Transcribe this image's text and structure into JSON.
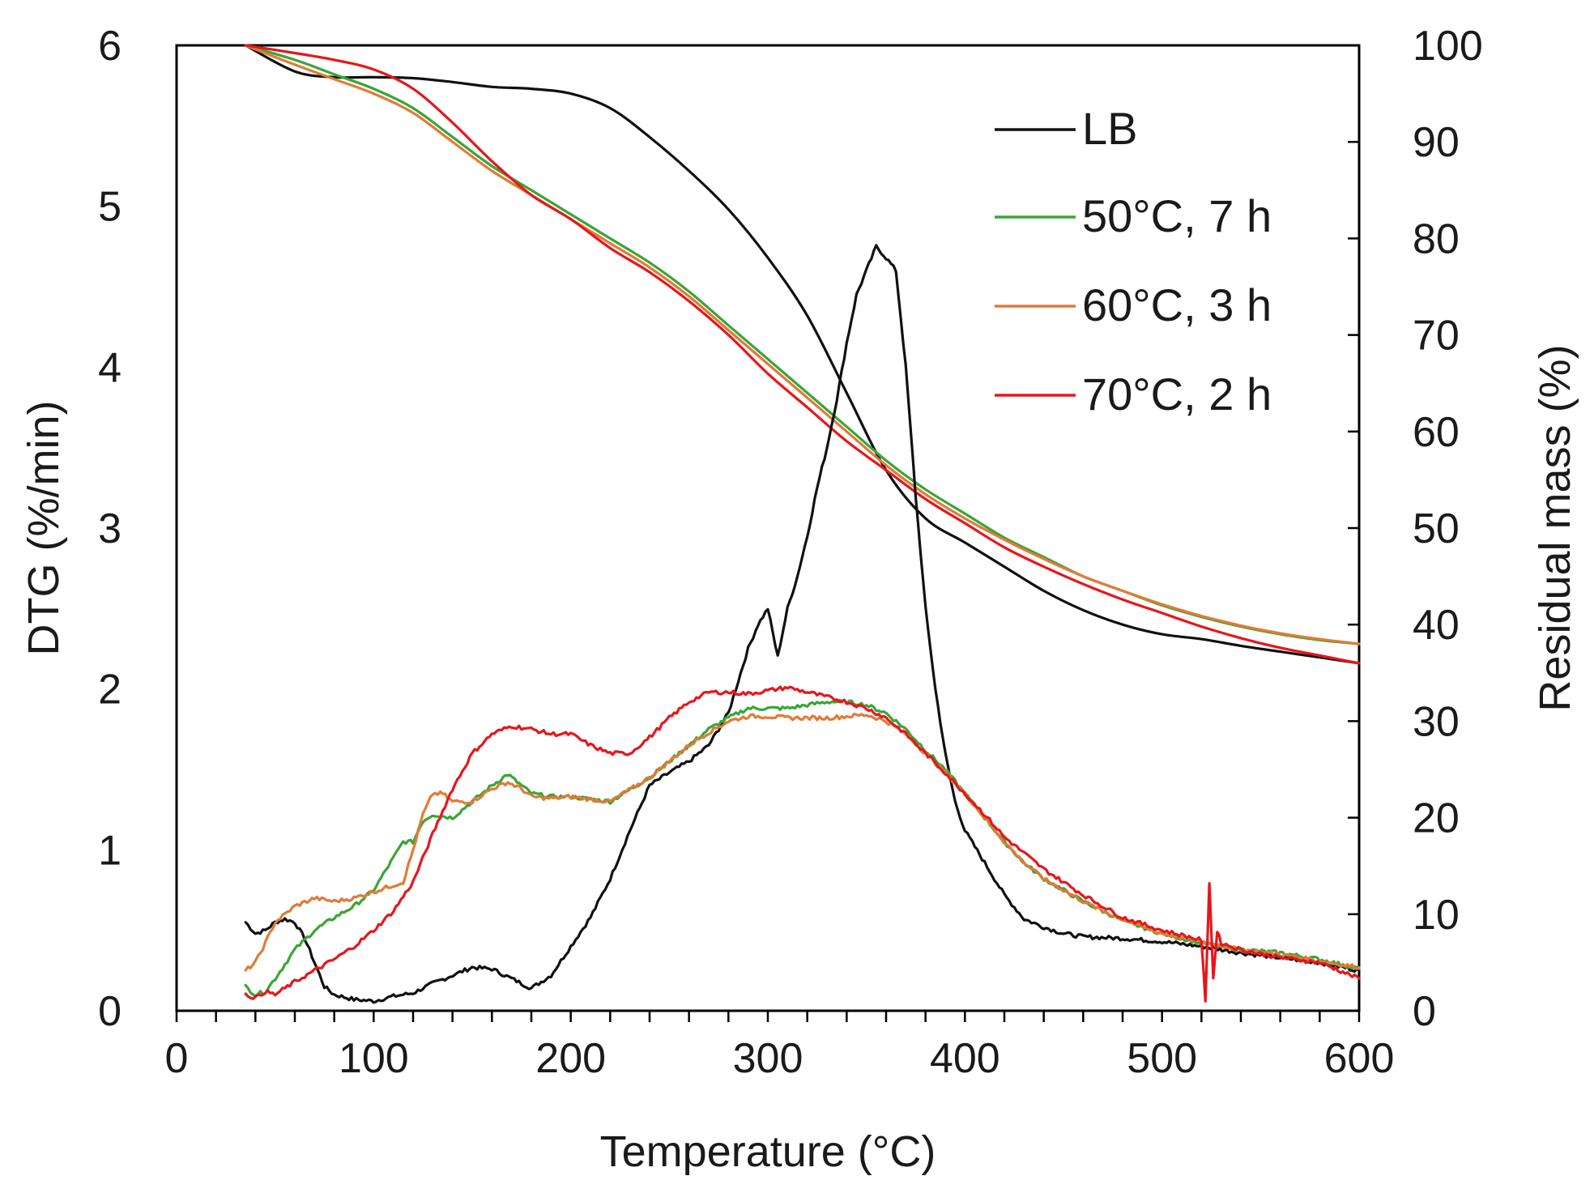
{
  "chart_data": {
    "type": "line",
    "title": "",
    "xlabel": "Temperature (°C)",
    "ylabel_left": "DTG (%/min)",
    "ylabel_right": "Residual mass (%)",
    "xlim": [
      0,
      600
    ],
    "ylim_left": [
      0,
      6
    ],
    "ylim_right": [
      0,
      100
    ],
    "x_ticks": [
      0,
      100,
      200,
      300,
      400,
      500,
      600
    ],
    "x_minor_step": 20,
    "y_left_ticks": [
      0,
      1,
      2,
      3,
      4,
      5,
      6
    ],
    "y_right_ticks": [
      0,
      10,
      20,
      30,
      40,
      50,
      60,
      70,
      80,
      90,
      100
    ],
    "grid": false,
    "legend_position": "top-right",
    "legend": [
      {
        "name": "LB",
        "color": "#111111"
      },
      {
        "name": "50°C, 7 h",
        "color": "#3aa537"
      },
      {
        "name": "60°C, 3 h",
        "color": "#e07b39"
      },
      {
        "name": "70°C, 2 h",
        "color": "#e8161b"
      }
    ],
    "series": [
      {
        "name": "LB",
        "kind": "residual_mass",
        "axis": "right",
        "color": "#111111",
        "x": [
          35,
          60,
          80,
          100,
          120,
          140,
          160,
          180,
          200,
          220,
          240,
          260,
          280,
          300,
          320,
          340,
          360,
          380,
          400,
          420,
          440,
          460,
          480,
          500,
          520,
          540,
          560,
          580,
          600
        ],
        "y": [
          100,
          97.3,
          96.7,
          96.7,
          96.6,
          96.2,
          95.7,
          95.5,
          95,
          93.5,
          90.5,
          87,
          83,
          78,
          72,
          64,
          56,
          51,
          48.5,
          46,
          43.5,
          41.5,
          40,
          39,
          38.5,
          37.8,
          37.2,
          36.6,
          36
        ]
      },
      {
        "name": "50°C, 7 h",
        "kind": "residual_mass",
        "axis": "right",
        "color": "#3aa537",
        "x": [
          35,
          60,
          80,
          100,
          120,
          140,
          160,
          180,
          200,
          220,
          240,
          260,
          280,
          300,
          320,
          340,
          360,
          380,
          400,
          420,
          440,
          460,
          480,
          500,
          520,
          540,
          560,
          580,
          600
        ],
        "y": [
          100,
          98.5,
          97,
          95.5,
          93.5,
          90.5,
          87.5,
          85,
          82.5,
          80,
          77.5,
          74.5,
          71,
          67.5,
          64,
          60.5,
          57,
          54,
          51.5,
          49,
          47,
          45,
          43.5,
          42,
          40.8,
          39.8,
          39,
          38.4,
          38
        ]
      },
      {
        "name": "60°C, 3 h",
        "kind": "residual_mass",
        "axis": "right",
        "color": "#e07b39",
        "x": [
          35,
          60,
          80,
          100,
          120,
          140,
          160,
          180,
          200,
          220,
          240,
          260,
          280,
          300,
          320,
          340,
          360,
          380,
          400,
          420,
          440,
          460,
          480,
          500,
          520,
          540,
          560,
          580,
          600
        ],
        "y": [
          100,
          98,
          96.5,
          95,
          93,
          90,
          87,
          84.5,
          82,
          79.5,
          77,
          74,
          70.5,
          67,
          63.5,
          60,
          56.5,
          53.5,
          51,
          48.8,
          46.8,
          45,
          43.5,
          42.1,
          40.9,
          39.9,
          39.1,
          38.5,
          38
        ]
      },
      {
        "name": "70°C, 2 h",
        "kind": "residual_mass",
        "axis": "right",
        "color": "#e8161b",
        "x": [
          35,
          60,
          80,
          100,
          120,
          140,
          160,
          180,
          200,
          220,
          240,
          260,
          280,
          300,
          320,
          340,
          360,
          380,
          400,
          420,
          440,
          460,
          480,
          500,
          520,
          540,
          560,
          580,
          600
        ],
        "y": [
          100,
          99.2,
          98.5,
          97.5,
          95.5,
          92,
          88,
          84.5,
          82,
          79,
          76.5,
          73.5,
          70,
          66,
          62.5,
          59,
          56,
          53,
          50.5,
          48,
          46,
          44.2,
          42.6,
          41.2,
          39.8,
          38.6,
          37.6,
          36.8,
          36
        ]
      },
      {
        "name": "LB",
        "kind": "DTG",
        "axis": "left",
        "color": "#111111",
        "x": [
          35,
          40,
          45,
          50,
          55,
          60,
          65,
          70,
          75,
          80,
          90,
          100,
          110,
          120,
          130,
          140,
          150,
          160,
          170,
          180,
          190,
          200,
          210,
          220,
          230,
          240,
          250,
          260,
          270,
          280,
          285,
          290,
          295,
          300,
          305,
          310,
          315,
          320,
          325,
          330,
          335,
          340,
          345,
          350,
          355,
          360,
          365,
          370,
          375,
          380,
          385,
          390,
          395,
          400,
          410,
          420,
          430,
          440,
          450,
          460,
          480,
          500,
          520,
          540,
          560,
          580,
          600
        ],
        "y": [
          0.55,
          0.48,
          0.5,
          0.55,
          0.57,
          0.55,
          0.45,
          0.3,
          0.15,
          0.1,
          0.07,
          0.06,
          0.09,
          0.11,
          0.17,
          0.22,
          0.27,
          0.26,
          0.2,
          0.14,
          0.22,
          0.4,
          0.58,
          0.82,
          1.12,
          1.4,
          1.48,
          1.55,
          1.65,
          1.85,
          2.05,
          2.25,
          2.4,
          2.5,
          2.2,
          2.5,
          2.7,
          2.95,
          3.25,
          3.5,
          3.8,
          4.15,
          4.45,
          4.6,
          4.75,
          4.68,
          4.6,
          4.0,
          3.2,
          2.5,
          2.0,
          1.6,
          1.3,
          1.12,
          0.92,
          0.72,
          0.57,
          0.52,
          0.48,
          0.46,
          0.45,
          0.43,
          0.4,
          0.36,
          0.33,
          0.3,
          0.25
        ]
      },
      {
        "name": "50°C, 7 h",
        "kind": "DTG",
        "axis": "left",
        "color": "#3aa537",
        "x": [
          35,
          40,
          45,
          50,
          60,
          70,
          80,
          90,
          100,
          110,
          115,
          120,
          125,
          130,
          140,
          150,
          160,
          168,
          175,
          180,
          190,
          200,
          220,
          240,
          250,
          260,
          270,
          280,
          290,
          300,
          310,
          320,
          330,
          340,
          350,
          360,
          370,
          380,
          390,
          400,
          410,
          420,
          430,
          440,
          450,
          460,
          470,
          480,
          490,
          500,
          520,
          540,
          560,
          580,
          600
        ],
        "y": [
          0.15,
          0.1,
          0.12,
          0.2,
          0.38,
          0.5,
          0.58,
          0.65,
          0.75,
          0.95,
          1.05,
          1.05,
          1.18,
          1.22,
          1.2,
          1.3,
          1.4,
          1.47,
          1.4,
          1.35,
          1.33,
          1.33,
          1.3,
          1.45,
          1.55,
          1.65,
          1.75,
          1.82,
          1.88,
          1.88,
          1.88,
          1.9,
          1.92,
          1.92,
          1.9,
          1.85,
          1.75,
          1.62,
          1.5,
          1.35,
          1.2,
          1.05,
          0.92,
          0.82,
          0.75,
          0.68,
          0.62,
          0.56,
          0.52,
          0.48,
          0.42,
          0.38,
          0.36,
          0.32,
          0.26
        ]
      },
      {
        "name": "60°C, 3 h",
        "kind": "DTG",
        "axis": "left",
        "color": "#e07b39",
        "x": [
          35,
          40,
          45,
          50,
          60,
          70,
          80,
          90,
          100,
          110,
          115,
          120,
          125,
          130,
          135,
          140,
          150,
          160,
          168,
          175,
          180,
          190,
          200,
          220,
          240,
          250,
          260,
          270,
          280,
          290,
          300,
          310,
          320,
          330,
          340,
          350,
          360,
          370,
          380,
          390,
          400,
          410,
          420,
          430,
          440,
          450,
          460,
          470,
          480,
          490,
          500,
          520,
          540,
          560,
          580,
          600
        ],
        "y": [
          0.25,
          0.3,
          0.42,
          0.55,
          0.65,
          0.7,
          0.68,
          0.7,
          0.74,
          0.78,
          0.8,
          1.0,
          1.22,
          1.35,
          1.35,
          1.3,
          1.3,
          1.38,
          1.42,
          1.38,
          1.33,
          1.32,
          1.33,
          1.3,
          1.45,
          1.55,
          1.65,
          1.73,
          1.8,
          1.83,
          1.83,
          1.82,
          1.82,
          1.82,
          1.83,
          1.84,
          1.8,
          1.72,
          1.6,
          1.48,
          1.35,
          1.2,
          1.05,
          0.92,
          0.82,
          0.75,
          0.68,
          0.62,
          0.57,
          0.52,
          0.48,
          0.43,
          0.38,
          0.35,
          0.31,
          0.27
        ]
      },
      {
        "name": "70°C, 2 h",
        "kind": "DTG",
        "axis": "left",
        "color": "#e8161b",
        "x": [
          35,
          40,
          45,
          50,
          60,
          70,
          80,
          90,
          100,
          110,
          120,
          125,
          130,
          140,
          150,
          160,
          170,
          180,
          190,
          200,
          210,
          220,
          230,
          240,
          250,
          260,
          270,
          280,
          290,
          300,
          310,
          320,
          330,
          340,
          350,
          360,
          370,
          380,
          390,
          400,
          410,
          420,
          430,
          440,
          450,
          460,
          470,
          480,
          490,
          500,
          510,
          520,
          522,
          524,
          526,
          528,
          530,
          540,
          560,
          580,
          600
        ],
        "y": [
          0.1,
          0.08,
          0.12,
          0.1,
          0.18,
          0.25,
          0.32,
          0.4,
          0.5,
          0.62,
          0.8,
          0.95,
          1.1,
          1.38,
          1.6,
          1.72,
          1.77,
          1.75,
          1.72,
          1.72,
          1.65,
          1.6,
          1.6,
          1.7,
          1.82,
          1.92,
          1.98,
          1.98,
          1.97,
          1.99,
          2.01,
          1.98,
          1.95,
          1.92,
          1.88,
          1.82,
          1.72,
          1.6,
          1.48,
          1.35,
          1.22,
          1.08,
          0.98,
          0.88,
          0.8,
          0.72,
          0.65,
          0.58,
          0.54,
          0.5,
          0.47,
          0.44,
          0.05,
          0.8,
          0.2,
          0.5,
          0.42,
          0.38,
          0.33,
          0.3,
          0.2
        ]
      }
    ]
  }
}
